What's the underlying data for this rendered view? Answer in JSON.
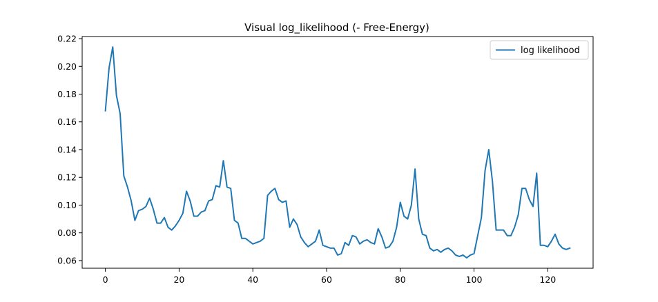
{
  "chart_data": {
    "type": "line",
    "title": "Visual log_likelihood (- Free-Energy)",
    "xlabel": "",
    "ylabel": "",
    "xlim": [
      -6.3,
      132.3
    ],
    "ylim": [
      0.0545,
      0.2215
    ],
    "xticks": [
      0,
      20,
      40,
      60,
      80,
      100,
      120
    ],
    "yticks": [
      0.06,
      0.08,
      0.1,
      0.12,
      0.14,
      0.16,
      0.18,
      0.2,
      0.22
    ],
    "ytick_labels": [
      "0.06",
      "0.08",
      "0.10",
      "0.12",
      "0.14",
      "0.16",
      "0.18",
      "0.20",
      "0.22"
    ],
    "grid": false,
    "legend_position": "upper right",
    "series": [
      {
        "name": "log likelihood",
        "color": "#1f77b4",
        "x": [
          0,
          1,
          2,
          3,
          4,
          5,
          6,
          7,
          8,
          9,
          10,
          11,
          12,
          13,
          14,
          15,
          16,
          17,
          18,
          19,
          20,
          21,
          22,
          23,
          24,
          25,
          26,
          27,
          28,
          29,
          30,
          31,
          32,
          33,
          34,
          35,
          36,
          37,
          38,
          39,
          40,
          41,
          42,
          43,
          44,
          45,
          46,
          47,
          48,
          49,
          50,
          51,
          52,
          53,
          54,
          55,
          56,
          57,
          58,
          59,
          60,
          61,
          62,
          63,
          64,
          65,
          66,
          67,
          68,
          69,
          70,
          71,
          72,
          73,
          74,
          75,
          76,
          77,
          78,
          79,
          80,
          81,
          82,
          83,
          84,
          85,
          86,
          87,
          88,
          89,
          90,
          91,
          92,
          93,
          94,
          95,
          96,
          97,
          98,
          99,
          100,
          101,
          102,
          103,
          104,
          105,
          106,
          107,
          108,
          109,
          110,
          111,
          112,
          113,
          114,
          115,
          116,
          117,
          118,
          119,
          120,
          121,
          122,
          123,
          124,
          125,
          126
        ],
        "y": [
          0.168,
          0.199,
          0.214,
          0.179,
          0.166,
          0.121,
          0.113,
          0.103,
          0.089,
          0.096,
          0.097,
          0.099,
          0.105,
          0.097,
          0.087,
          0.087,
          0.091,
          0.084,
          0.082,
          0.085,
          0.089,
          0.094,
          0.11,
          0.103,
          0.092,
          0.092,
          0.095,
          0.096,
          0.103,
          0.104,
          0.114,
          0.113,
          0.132,
          0.113,
          0.112,
          0.089,
          0.087,
          0.076,
          0.076,
          0.074,
          0.072,
          0.073,
          0.074,
          0.076,
          0.107,
          0.11,
          0.112,
          0.104,
          0.102,
          0.103,
          0.084,
          0.09,
          0.086,
          0.077,
          0.073,
          0.07,
          0.072,
          0.074,
          0.082,
          0.071,
          0.07,
          0.069,
          0.069,
          0.064,
          0.065,
          0.073,
          0.071,
          0.078,
          0.077,
          0.072,
          0.074,
          0.075,
          0.073,
          0.072,
          0.083,
          0.077,
          0.069,
          0.07,
          0.074,
          0.084,
          0.102,
          0.092,
          0.09,
          0.1,
          0.126,
          0.09,
          0.079,
          0.078,
          0.069,
          0.067,
          0.068,
          0.066,
          0.068,
          0.069,
          0.067,
          0.064,
          0.063,
          0.064,
          0.062,
          0.064,
          0.065,
          0.078,
          0.091,
          0.125,
          0.14,
          0.117,
          0.082,
          0.082,
          0.082,
          0.078,
          0.078,
          0.084,
          0.093,
          0.112,
          0.112,
          0.104,
          0.099,
          0.123,
          0.071,
          0.071,
          0.07,
          0.074,
          0.079,
          0.072,
          0.069,
          0.068,
          0.069
        ]
      }
    ]
  }
}
